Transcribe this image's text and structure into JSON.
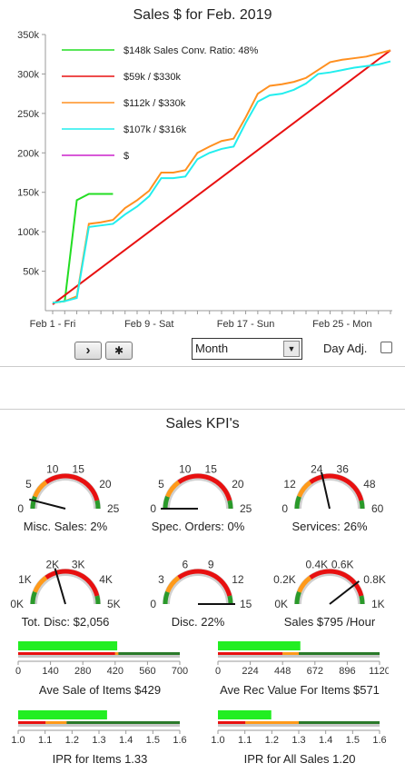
{
  "chart": {
    "title": "Sales $ for Feb. 2019",
    "chart_data": {
      "type": "line",
      "ylim": [
        0,
        350000
      ],
      "yticks": [
        "50k",
        "100k",
        "150k",
        "200k",
        "250k",
        "300k",
        "350k"
      ],
      "xticks": [
        "Feb 1 - Fri",
        "Feb 9 - Sat",
        "Feb 17 - Sun",
        "Feb 25 - Mon"
      ],
      "legend_placement": "top-left",
      "series": [
        {
          "name": "$148k Sales Conv. Ratio: 48%",
          "color": "#22dd22",
          "x": [
            1,
            2,
            3,
            4,
            5,
            6
          ],
          "y": [
            10000,
            12000,
            140000,
            148000,
            148000,
            148000
          ]
        },
        {
          "name": "$59k / $330k",
          "color": "#e81010",
          "x": [
            1,
            29
          ],
          "y": [
            8000,
            330000
          ]
        },
        {
          "name": "$112k / $330k",
          "color": "#ff9020",
          "x": [
            1,
            2,
            3,
            4,
            5,
            6,
            7,
            8,
            9,
            10,
            11,
            12,
            13,
            14,
            15,
            16,
            17,
            18,
            19,
            20,
            21,
            22,
            23,
            24,
            25,
            26,
            27,
            28,
            29
          ],
          "y": [
            10000,
            12000,
            18000,
            110000,
            112000,
            115000,
            130000,
            140000,
            152000,
            175000,
            175000,
            178000,
            200000,
            208000,
            215000,
            218000,
            245000,
            275000,
            285000,
            287000,
            290000,
            295000,
            305000,
            315000,
            318000,
            320000,
            322000,
            326000,
            330000
          ]
        },
        {
          "name": "$107k / $316k",
          "color": "#22eeee",
          "x": [
            1,
            2,
            3,
            4,
            5,
            6,
            7,
            8,
            9,
            10,
            11,
            12,
            13,
            14,
            15,
            16,
            17,
            18,
            19,
            20,
            21,
            22,
            23,
            24,
            25,
            26,
            27,
            28,
            29
          ],
          "y": [
            10000,
            12000,
            16000,
            106000,
            108000,
            110000,
            122000,
            132000,
            145000,
            168000,
            168000,
            170000,
            192000,
            200000,
            205000,
            208000,
            238000,
            265000,
            273000,
            275000,
            280000,
            288000,
            300000,
            302000,
            305000,
            308000,
            310000,
            312000,
            316000
          ]
        },
        {
          "name": "$",
          "color": "#cc22cc",
          "x": [],
          "y": []
        }
      ]
    }
  },
  "controls": {
    "next_label": "›",
    "asterisk_label": "✱",
    "period_value": "Month",
    "day_adj_label": "Day Adj."
  },
  "kpi": {
    "title": "Sales KPI's",
    "gauges": [
      {
        "caption": "Misc. Sales: 2%",
        "ticks": [
          "0",
          "5",
          "10",
          "15",
          "20",
          "25"
        ],
        "value_fraction": 0.08
      },
      {
        "caption": "Spec. Orders: 0%",
        "ticks": [
          "0",
          "5",
          "10",
          "15",
          "20",
          "25"
        ],
        "value_fraction": 0.0
      },
      {
        "caption": "Services: 26%",
        "ticks": [
          "0",
          "12",
          "24",
          "36",
          "48",
          "60"
        ],
        "value_fraction": 0.43
      },
      {
        "caption": "Tot. Disc: $2,056",
        "ticks": [
          "0K",
          "1K",
          "2K",
          "3K",
          "4K",
          "5K"
        ],
        "value_fraction": 0.41
      },
      {
        "caption": "Disc. 22%",
        "ticks": [
          "0",
          "3",
          "6",
          "9",
          "12",
          "15"
        ],
        "value_fraction": 1.0
      },
      {
        "caption": "Sales $795 /Hour",
        "ticks": [
          "0K",
          "0.2K",
          "0.4K",
          "0.6K",
          "0.8K",
          "1K"
        ],
        "value_fraction": 0.79
      }
    ],
    "bars": [
      {
        "caption": "Ave Sale of Items $429",
        "ticks": [
          "0",
          "140",
          "280",
          "420",
          "560",
          "700"
        ],
        "value": 429,
        "max": 700,
        "red_end": 0.6,
        "orange_end": 0.62
      },
      {
        "caption": "Ave Rec Value For Items $571",
        "ticks": [
          "0",
          "224",
          "448",
          "672",
          "896",
          "1120"
        ],
        "value": 571,
        "max": 1120,
        "red_end": 0.4,
        "orange_end": 0.5
      },
      {
        "caption": "IPR for Items 1.33",
        "ticks": [
          "1.0",
          "1.1",
          "1.2",
          "1.3",
          "1.4",
          "1.5",
          "1.6"
        ],
        "value": 0.55,
        "max": 1,
        "red_end": 0.17,
        "orange_end": 0.3
      },
      {
        "caption": "IPR for All Sales 1.20",
        "ticks": [
          "1.0",
          "1.1",
          "1.2",
          "1.3",
          "1.4",
          "1.5",
          "1.6"
        ],
        "value": 0.33,
        "max": 1,
        "red_end": 0.17,
        "orange_end": 0.5
      }
    ]
  }
}
